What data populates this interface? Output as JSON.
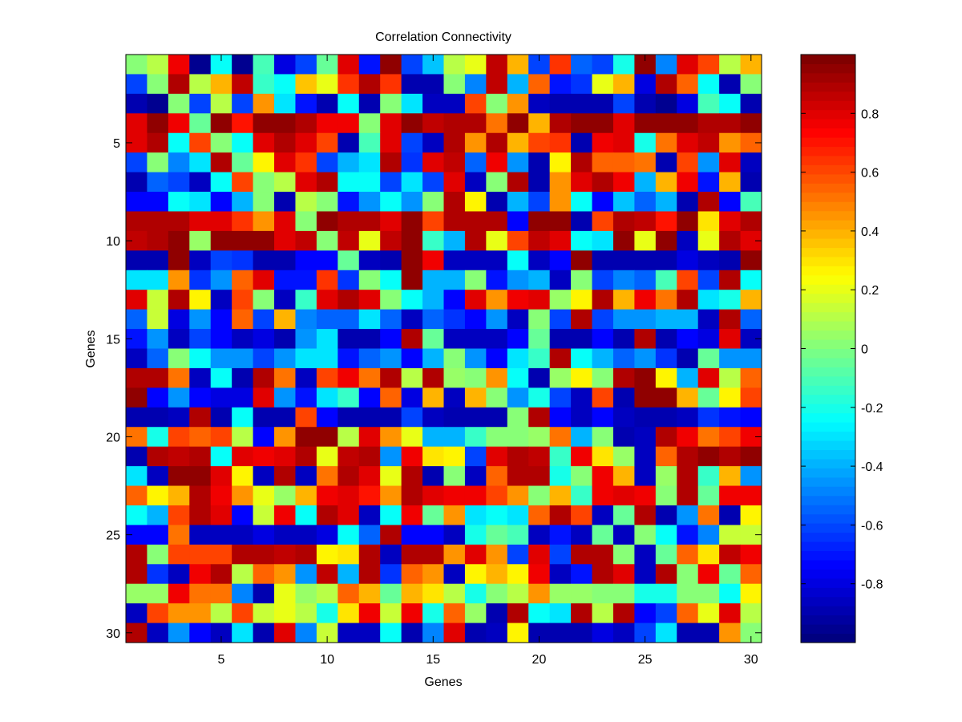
{
  "chart_data": {
    "type": "heatmap",
    "title": "Correlation Connectivity",
    "xlabel": "Genes",
    "ylabel": "Genes",
    "colormap": "jet",
    "xlim": [
      0.5,
      30.5
    ],
    "xticks": [
      5,
      10,
      15,
      20,
      25,
      30
    ],
    "ylim": [
      0.5,
      30.5
    ],
    "yticks": [
      5,
      10,
      15,
      20,
      25,
      30
    ],
    "y_reversed": true,
    "clim": [
      -1,
      1
    ],
    "cticks": [
      -0.8,
      -0.6,
      -0.4,
      -0.2,
      0,
      0.2,
      0.4,
      0.6,
      0.8
    ],
    "z": [
      [
        0,
        0.1,
        0.75,
        -0.95,
        -0.25,
        -0.95,
        -0.1,
        -0.8,
        -0.6,
        -0.05,
        0.8,
        -0.7,
        0.95,
        -0.6,
        -0.35,
        0.1,
        0.2,
        0.85,
        0.4,
        -0.6,
        0.65,
        -0.55,
        -0.6,
        -0.2,
        0.95,
        -0.5,
        0.8,
        0.6,
        0.1,
        0.4
      ],
      [
        -0.6,
        0,
        0.9,
        0.1,
        0.4,
        0.85,
        -0.15,
        -0.25,
        0.35,
        0.2,
        0.65,
        0.9,
        0.65,
        -0.9,
        -0.9,
        0,
        -0.5,
        0.85,
        -0.4,
        0.55,
        -0.7,
        -0.65,
        0.2,
        0.4,
        -0.8,
        0.9,
        0.55,
        -0.25,
        -0.9,
        0
      ],
      [
        -0.9,
        -0.95,
        0,
        -0.6,
        0.1,
        -0.6,
        0.45,
        -0.3,
        -0.7,
        -0.9,
        -0.25,
        -0.9,
        0,
        -0.3,
        -0.85,
        -0.85,
        0.6,
        0,
        0.45,
        -0.85,
        -0.9,
        -0.9,
        -0.9,
        -0.6,
        -0.9,
        -0.95,
        -0.8,
        -0.1,
        -0.25,
        -0.9
      ],
      [
        0.8,
        0.95,
        0.75,
        -0.05,
        0.95,
        0.7,
        0.95,
        0.95,
        0.9,
        0.75,
        0.75,
        0,
        0.8,
        0.95,
        0.85,
        0.9,
        0.9,
        0.5,
        0.95,
        0.4,
        0.9,
        0.95,
        0.95,
        0.8,
        0.95,
        0.95,
        0.95,
        0.9,
        0.9,
        0.95
      ],
      [
        0.8,
        0.9,
        -0.25,
        0.6,
        0,
        -0.25,
        0.8,
        0.9,
        0.8,
        0.6,
        -0.9,
        -0.1,
        0.8,
        -0.6,
        -0.85,
        0.9,
        0.45,
        0.9,
        0.4,
        0.6,
        0.65,
        -0.9,
        0.75,
        0.8,
        -0.2,
        0.5,
        0.8,
        0.85,
        0.45,
        0.55
      ],
      [
        -0.6,
        0,
        -0.5,
        -0.3,
        0.9,
        -0.05,
        0.25,
        0.8,
        0.65,
        -0.6,
        -0.4,
        -0.3,
        0.9,
        -0.65,
        0.8,
        0.85,
        -0.55,
        0.75,
        -0.45,
        -0.9,
        0.25,
        0.9,
        0.55,
        0.55,
        0.5,
        -0.9,
        0.6,
        -0.45,
        0.8,
        -0.85
      ],
      [
        -0.9,
        -0.55,
        -0.6,
        -0.85,
        -0.25,
        0.6,
        0,
        0.1,
        0.8,
        0.9,
        -0.25,
        -0.25,
        -0.6,
        -0.3,
        -0.6,
        0.8,
        -0.85,
        0,
        0.9,
        -0.9,
        0.45,
        0.8,
        0.9,
        0.75,
        -0.4,
        0.4,
        0.75,
        -0.7,
        0.4,
        -0.9
      ],
      [
        -0.75,
        -0.75,
        -0.25,
        -0.3,
        -0.75,
        -0.4,
        0,
        -0.9,
        0.1,
        0,
        -0.7,
        -0.45,
        -0.25,
        -0.45,
        0,
        0.9,
        0.25,
        -0.9,
        -0.4,
        -0.6,
        0.45,
        -0.25,
        -0.75,
        -0.35,
        -0.55,
        -0.4,
        -0.9,
        0.9,
        -0.75,
        -0.1
      ],
      [
        0.9,
        0.9,
        0.9,
        0.8,
        0.8,
        0.65,
        0.45,
        0.8,
        0,
        0.95,
        0.9,
        0.9,
        0.8,
        0.95,
        0.6,
        0.9,
        0.9,
        0.9,
        -0.75,
        0.95,
        0.95,
        -0.9,
        0.6,
        0.9,
        0.85,
        0.7,
        0.95,
        0.3,
        0.8,
        0.9
      ],
      [
        0.85,
        0.9,
        0.95,
        0.05,
        0.95,
        0.95,
        0.95,
        0.8,
        0.85,
        0,
        0.85,
        0.2,
        0.85,
        0.95,
        -0.15,
        -0.4,
        0.9,
        0.2,
        0.6,
        0.85,
        0.8,
        -0.25,
        -0.3,
        0.95,
        0.2,
        0.95,
        -0.85,
        0.2,
        0.9,
        0.8
      ],
      [
        -0.9,
        -0.9,
        0.95,
        -0.85,
        -0.6,
        -0.65,
        -0.9,
        -0.9,
        -0.75,
        -0.75,
        -0.05,
        -0.85,
        -0.9,
        0.95,
        0.75,
        -0.85,
        -0.85,
        -0.85,
        -0.25,
        -0.85,
        -0.75,
        0.95,
        -0.9,
        -0.9,
        -0.9,
        -0.9,
        -0.8,
        -0.85,
        -0.9,
        0.95
      ],
      [
        -0.3,
        -0.3,
        0.45,
        -0.65,
        -0.45,
        0.55,
        0.8,
        -0.7,
        -0.7,
        0.65,
        -0.65,
        0,
        -0.25,
        0.95,
        -0.4,
        -0.4,
        0,
        -0.7,
        -0.45,
        -0.4,
        -0.85,
        0,
        -0.6,
        -0.5,
        -0.55,
        -0.1,
        0.6,
        -0.6,
        0.9,
        -0.25
      ],
      [
        0.8,
        0.15,
        0.9,
        0.25,
        -0.85,
        0.6,
        0,
        -0.85,
        -0.15,
        0.8,
        0.9,
        0.8,
        0,
        -0.25,
        -0.4,
        -0.75,
        0.8,
        0.45,
        0.75,
        0.8,
        0.05,
        0.25,
        0.9,
        0.4,
        0.75,
        0.5,
        0.9,
        -0.3,
        -0.2,
        0.4
      ],
      [
        -0.55,
        0.15,
        -0.8,
        -0.45,
        -0.75,
        0.55,
        -0.6,
        0.4,
        -0.5,
        -0.55,
        -0.55,
        -0.3,
        -0.55,
        -0.85,
        -0.55,
        -0.65,
        -0.75,
        -0.45,
        -0.85,
        0,
        -0.6,
        0.9,
        -0.6,
        -0.45,
        -0.45,
        -0.4,
        -0.4,
        -0.85,
        0.9,
        -0.55
      ],
      [
        -0.7,
        -0.45,
        -0.85,
        -0.6,
        -0.75,
        -0.85,
        -0.8,
        -0.9,
        -0.45,
        -0.3,
        -0.9,
        -0.9,
        -0.75,
        0.9,
        -0.05,
        -0.85,
        -0.85,
        -0.85,
        -0.75,
        -0.05,
        -0.9,
        -0.9,
        -0.75,
        -0.9,
        0.9,
        -0.9,
        -0.75,
        -0.8,
        0.8,
        -0.85
      ],
      [
        -0.85,
        -0.55,
        0,
        -0.25,
        -0.45,
        -0.45,
        -0.6,
        -0.45,
        -0.3,
        -0.3,
        -0.7,
        -0.55,
        -0.45,
        -0.75,
        -0.4,
        0,
        -0.45,
        -0.75,
        -0.3,
        -0.15,
        0.9,
        -0.25,
        -0.4,
        -0.55,
        -0.45,
        -0.65,
        -0.9,
        -0.05,
        -0.45,
        -0.45
      ],
      [
        0.9,
        0.9,
        0.5,
        -0.85,
        -0.25,
        -0.9,
        0.9,
        0.5,
        -0.85,
        0.6,
        0.75,
        0.5,
        0.9,
        0.1,
        0.9,
        0.05,
        0,
        0.45,
        -0.25,
        -0.9,
        0.05,
        0.25,
        0,
        0.9,
        0.95,
        0.25,
        -0.4,
        0.8,
        0.1,
        0.55
      ],
      [
        0.95,
        -0.75,
        -0.45,
        -0.75,
        -0.8,
        -0.8,
        0.8,
        -0.45,
        -0.7,
        -0.3,
        -0.15,
        -0.75,
        0.55,
        -0.8,
        0.4,
        -0.85,
        0.4,
        0,
        -0.45,
        -0.2,
        -0.6,
        -0.85,
        0.6,
        -0.9,
        0.95,
        0.95,
        0.4,
        -0.05,
        0.25,
        0.6
      ],
      [
        -0.9,
        -0.9,
        -0.85,
        0.9,
        -0.9,
        -0.25,
        -0.9,
        -0.9,
        0.6,
        -0.75,
        -0.9,
        -0.9,
        -0.9,
        -0.6,
        -0.85,
        -0.9,
        -0.9,
        -0.9,
        0,
        0.9,
        -0.75,
        -0.85,
        -0.75,
        -0.85,
        -0.9,
        -0.9,
        -0.85,
        -0.65,
        -0.7,
        -0.75
      ],
      [
        0.5,
        -0.2,
        0.6,
        0.55,
        0.6,
        0.1,
        -0.75,
        0.45,
        0.95,
        0.95,
        0.1,
        0.8,
        0.45,
        0.2,
        -0.4,
        -0.4,
        -0.15,
        0,
        0,
        0.05,
        0.5,
        -0.4,
        0,
        -0.9,
        -0.85,
        0.9,
        0.75,
        0.5,
        0.6,
        0.75
      ],
      [
        -0.9,
        0.9,
        0.85,
        0.9,
        -0.25,
        0.8,
        0.75,
        0.8,
        0.9,
        0.2,
        0.85,
        0.9,
        -0.45,
        0.75,
        0.3,
        0.25,
        -0.6,
        0.8,
        0.9,
        0.85,
        -0.15,
        0.75,
        0.3,
        0.05,
        -0.85,
        0.55,
        0.9,
        0.95,
        0.9,
        0.95
      ],
      [
        -0.3,
        -0.85,
        0.95,
        0.95,
        0.8,
        0.25,
        -0.85,
        0.9,
        -0.85,
        0.5,
        0.9,
        0.8,
        0.2,
        0.9,
        -0.9,
        0,
        -0.85,
        0.55,
        0.9,
        0.9,
        -0.2,
        0,
        0.75,
        0.4,
        -0.85,
        0.05,
        0.9,
        -0.15,
        0.4,
        -0.45
      ],
      [
        0.55,
        0.25,
        0.4,
        0.9,
        0.75,
        0.45,
        0.2,
        0.05,
        0.4,
        0.75,
        0.8,
        0.7,
        0.45,
        0.9,
        0.8,
        0.75,
        0.75,
        0.6,
        0.45,
        0,
        0.4,
        -0.15,
        0.75,
        0.8,
        0.75,
        0,
        0.9,
        -0.05,
        0.75,
        0.75
      ],
      [
        -0.25,
        -0.4,
        0.6,
        0.9,
        0.8,
        -0.75,
        0.15,
        0.75,
        -0.25,
        0.9,
        0.8,
        -0.85,
        -0.25,
        0.75,
        -0.05,
        0.45,
        -0.3,
        -0.25,
        -0.3,
        0.55,
        0.9,
        0.6,
        -0.85,
        -0.05,
        0.9,
        -0.9,
        -0.45,
        0.5,
        -0.9,
        0.25
      ],
      [
        -0.75,
        -0.75,
        0.5,
        -0.85,
        -0.85,
        -0.85,
        -0.8,
        -0.85,
        -0.85,
        -0.8,
        -0.25,
        -0.55,
        0.9,
        -0.75,
        -0.75,
        -0.85,
        -0.2,
        -0.05,
        -0.1,
        -0.85,
        -0.7,
        -0.85,
        -0.05,
        -0.85,
        0,
        -0.25,
        -0.7,
        -0.5,
        0.15,
        0.15
      ],
      [
        0.9,
        0,
        0.6,
        0.6,
        0.6,
        0.9,
        0.9,
        0.85,
        0.9,
        0.25,
        0.3,
        0.9,
        -0.85,
        0.9,
        0.9,
        0.45,
        0.8,
        0.45,
        -0.6,
        0.8,
        -0.6,
        0.9,
        0.9,
        0,
        -0.85,
        -0.05,
        0.55,
        0.3,
        0.85,
        0.75
      ],
      [
        0.9,
        -0.65,
        -0.85,
        0.75,
        0.9,
        0.1,
        0.55,
        0.45,
        -0.45,
        0.85,
        -0.4,
        0.9,
        -0.65,
        0.55,
        0.45,
        -0.85,
        0.25,
        0.4,
        0.25,
        0.75,
        -0.85,
        -0.7,
        0.9,
        0.8,
        -0.85,
        0.9,
        0,
        0.75,
        -0.05,
        0.55
      ],
      [
        0.05,
        0.05,
        0.75,
        0.5,
        0.5,
        -0.5,
        -0.9,
        0.2,
        0.05,
        0.1,
        0.55,
        0.4,
        -0.05,
        0.4,
        0.3,
        0.1,
        -0.2,
        0,
        0.1,
        0.45,
        0.05,
        0.05,
        0,
        0,
        -0.2,
        -0.2,
        0,
        0,
        -0.25,
        0.25
      ],
      [
        -0.85,
        0.6,
        0.45,
        0.45,
        0.1,
        0.6,
        0.15,
        0.2,
        0.1,
        -0.2,
        0.3,
        0.75,
        0.15,
        0.75,
        -0.2,
        0.55,
        0.05,
        -0.9,
        0.9,
        -0.25,
        -0.3,
        0.9,
        0.1,
        0.9,
        -0.75,
        -0.6,
        0.55,
        0.2,
        0.8,
        0.1
      ],
      [
        0.9,
        -0.85,
        -0.45,
        -0.75,
        -0.85,
        -0.3,
        -0.9,
        0.8,
        -0.5,
        0.15,
        -0.85,
        -0.85,
        -0.25,
        -0.9,
        -0.5,
        0.8,
        -0.9,
        -0.85,
        0.25,
        -0.9,
        -0.9,
        -0.9,
        -0.8,
        -0.85,
        -0.6,
        -0.3,
        -0.9,
        -0.9,
        0.45,
        0
      ]
    ]
  }
}
